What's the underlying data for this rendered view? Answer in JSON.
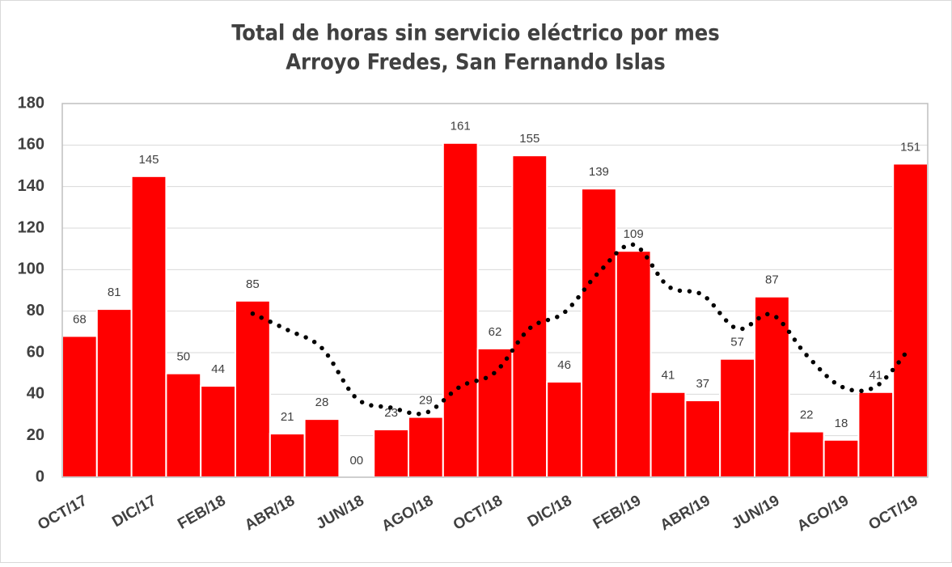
{
  "chart_data": {
    "type": "bar",
    "title": "Total de horas sin servicio eléctrico por mes",
    "subtitle": "Arroyo Fredes, San Fernando Islas",
    "categories": [
      "OCT/17",
      null,
      "DIC/17",
      null,
      "FEB/18",
      null,
      "ABR/18",
      null,
      "JUN/18",
      null,
      "AGO/18",
      null,
      "OCT/18",
      null,
      "DIC/18",
      null,
      "FEB/19",
      null,
      "ABR/19",
      null,
      "JUN/19",
      null,
      "AGO/19",
      null,
      "OCT/19"
    ],
    "values": [
      68,
      81,
      145,
      50,
      44,
      85,
      21,
      28,
      0,
      23,
      29,
      161,
      62,
      155,
      46,
      139,
      109,
      41,
      37,
      57,
      87,
      22,
      18,
      41,
      151
    ],
    "value_labels": [
      "68",
      "81",
      "145",
      "50",
      "44",
      "85",
      "21",
      "28",
      "00",
      "23",
      "29",
      "161",
      "62",
      "155",
      "46",
      "139",
      "109",
      "41",
      "37",
      "57",
      "87",
      "22",
      "18",
      "41",
      "151"
    ],
    "color": "#ff0000",
    "trendline": {
      "color": "#000000",
      "values": [
        null,
        null,
        null,
        null,
        null,
        78.8,
        71,
        62.2,
        38,
        33.5,
        31,
        43.7,
        50.5,
        71.7,
        79.3,
        98.7,
        112,
        92,
        87.8,
        71.5,
        78.3,
        58.8,
        43.7,
        43.7,
        62.7
      ]
    },
    "ylim": [
      0,
      180
    ],
    "yticks": [
      0,
      20,
      40,
      60,
      80,
      100,
      120,
      140,
      160,
      180
    ],
    "grid": true
  }
}
